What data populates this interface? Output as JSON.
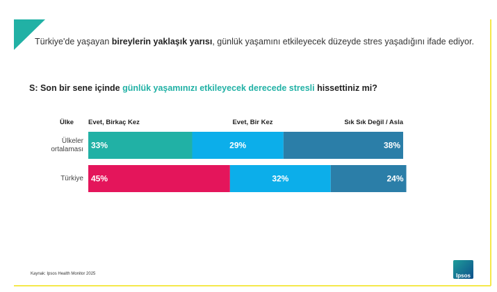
{
  "header": {
    "parts": [
      "Türkiye'de yaşayan ",
      "bireylerin yaklaşık yarısı",
      ", günlük yaşamını etkileyecek düzeyde stres yaşadığını ifade ediyor."
    ]
  },
  "chart_data": {
    "type": "stacked-bar-horizontal",
    "title": [
      "S: Son bir sene içinde ",
      "günlük yaşamınızı etkileyecek derecede stresli",
      " hissettiniz mi?"
    ],
    "category_label": "Ülke",
    "categories": [
      "Ülkeler ortalaması",
      "Türkiye"
    ],
    "xlim": [
      0,
      100
    ],
    "series": [
      {
        "name": "Evet, Birkaç Kez",
        "colors": [
          "#21b1a5",
          "#e4155b"
        ],
        "values": [
          33,
          45
        ],
        "value_labels": [
          "33%",
          "45%"
        ]
      },
      {
        "name": "Evet, Bir Kez",
        "color": "#0caeea",
        "values": [
          29,
          32
        ],
        "value_labels": [
          "29%",
          "32%"
        ]
      },
      {
        "name": "Sık Sık Değil / Asla",
        "color": "#2b7ea8",
        "values": [
          38,
          24
        ],
        "value_labels": [
          "38%",
          "24%"
        ]
      }
    ]
  },
  "footer": {
    "source": "Kaynak: Ipsos Health Monitor 2025",
    "logo": "Ipsos"
  }
}
